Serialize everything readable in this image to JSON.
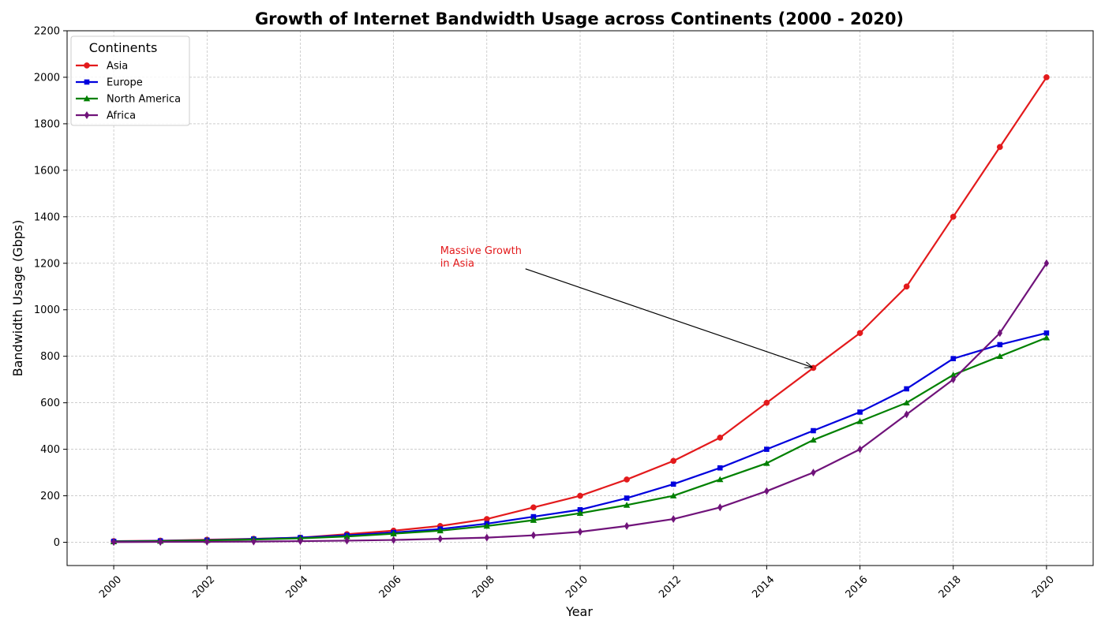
{
  "chart_data": {
    "type": "line",
    "title": "Growth of Internet Bandwidth Usage across Continents (2000 - 2020)",
    "xlabel": "Year",
    "ylabel": "Bandwidth Usage (Gbps)",
    "xlim": [
      1999,
      2021
    ],
    "ylim": [
      -100,
      2200
    ],
    "x_ticks": [
      2000,
      2002,
      2004,
      2006,
      2008,
      2010,
      2012,
      2014,
      2016,
      2018,
      2020
    ],
    "y_ticks": [
      0,
      200,
      400,
      600,
      800,
      1000,
      1200,
      1400,
      1600,
      1800,
      2000,
      2200
    ],
    "x_tick_rotation": 45,
    "grid": true,
    "legend": {
      "title": "Continents",
      "placement": "top-left"
    },
    "x": [
      2000,
      2001,
      2002,
      2003,
      2004,
      2005,
      2006,
      2007,
      2008,
      2009,
      2010,
      2011,
      2012,
      2013,
      2014,
      2015,
      2016,
      2017,
      2018,
      2019,
      2020
    ],
    "series": [
      {
        "name": "Asia",
        "color": "#e31a1c",
        "marker": "circle",
        "values": [
          5,
          7,
          11,
          15,
          20,
          35,
          50,
          70,
          100,
          150,
          200,
          270,
          350,
          450,
          600,
          750,
          900,
          1100,
          1400,
          1700,
          2000
        ]
      },
      {
        "name": "Europe",
        "color": "#0000dd",
        "marker": "square",
        "values": [
          4,
          6,
          9,
          14,
          20,
          30,
          42,
          57,
          80,
          110,
          140,
          190,
          250,
          320,
          400,
          480,
          560,
          660,
          790,
          850,
          900
        ]
      },
      {
        "name": "North America",
        "color": "#008000",
        "marker": "triangle",
        "values": [
          3,
          5,
          8,
          12,
          17,
          25,
          37,
          50,
          70,
          95,
          125,
          160,
          200,
          270,
          340,
          440,
          520,
          600,
          720,
          800,
          880
        ]
      },
      {
        "name": "Africa",
        "color": "#70137a",
        "marker": "diamond",
        "values": [
          1,
          1.5,
          2,
          3,
          5,
          7,
          10,
          15,
          20,
          30,
          45,
          70,
          100,
          150,
          220,
          300,
          400,
          550,
          700,
          900,
          1200
        ]
      }
    ],
    "annotations": [
      {
        "text_lines": [
          "Massive Growth",
          "in Asia"
        ],
        "color": "#e31a1c",
        "text_x": 2007,
        "text_y": 1200,
        "arrow_to_x": 2015,
        "arrow_to_y": 750
      }
    ]
  }
}
